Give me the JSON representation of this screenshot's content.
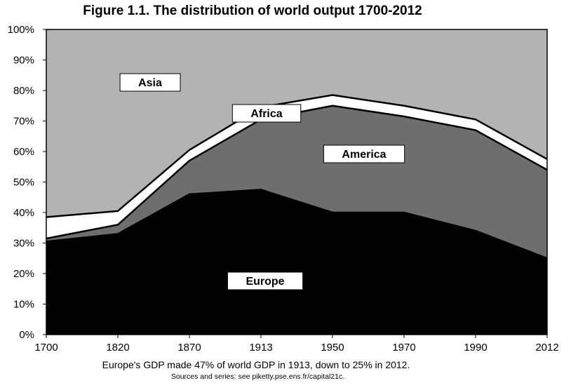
{
  "title": "Figure 1.1. The distribution of world output 1700-2012",
  "caption": "Europe's GDP made 47% of world GDP in 1913, down to 25% in 2012.",
  "source": "Sources and series: see piketty.pse.ens.fr/capital21c.",
  "chart_data": {
    "type": "area",
    "stacked": true,
    "categories": [
      "1700",
      "1820",
      "1870",
      "1913",
      "1950",
      "1970",
      "1990",
      "2012"
    ],
    "y_tick_labels": [
      "0%",
      "10%",
      "20%",
      "30%",
      "40%",
      "50%",
      "60%",
      "70%",
      "80%",
      "90%",
      "100%"
    ],
    "ylim": [
      0,
      100
    ],
    "grid": false,
    "legend": "inline labels",
    "series": [
      {
        "name": "Europe",
        "color": "#000000",
        "values": [
          30.5,
          33.0,
          46.0,
          47.5,
          40.0,
          40.0,
          34.0,
          25.0
        ]
      },
      {
        "name": "America",
        "color": "#6e6e6e",
        "values": [
          1.0,
          3.0,
          11.0,
          23.0,
          35.0,
          31.5,
          33.0,
          29.0
        ]
      },
      {
        "name": "Africa",
        "color": "#ffffff",
        "values": [
          7.0,
          4.5,
          3.5,
          4.0,
          3.5,
          3.5,
          3.5,
          3.5
        ]
      },
      {
        "name": "Asia",
        "color": "#b3b3b3",
        "values": [
          61.5,
          59.5,
          39.5,
          25.5,
          21.5,
          25.0,
          29.5,
          42.5
        ]
      }
    ]
  }
}
